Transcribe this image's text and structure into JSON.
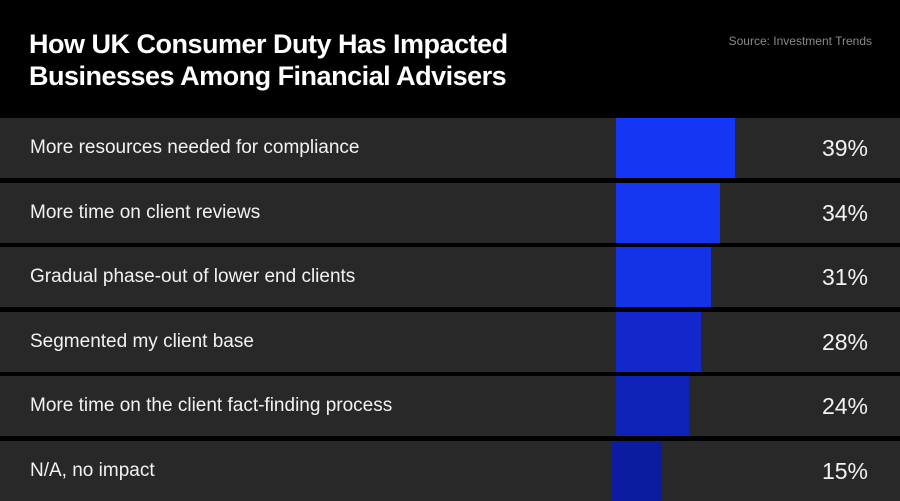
{
  "chart_data": {
    "type": "bar",
    "orientation": "horizontal",
    "title": "How UK Consumer Duty Has Impacted Businesses Among Financial Advisers",
    "source": "Source: Investment Trends",
    "categories": [
      "More resources needed for compliance",
      "More time on client reviews",
      "Gradual phase-out of lower end clients",
      "Segmented my client base",
      "More time on the client fact-finding process",
      "N/A, no impact"
    ],
    "values": [
      39,
      34,
      31,
      28,
      24,
      15
    ],
    "value_labels": [
      "39%",
      "34%",
      "31%",
      "28%",
      "24%",
      "15%"
    ],
    "bar_colors": [
      "#1537f5",
      "#1535f0",
      "#1433e6",
      "#1228cc",
      "#0f22b8",
      "#0b1ca0"
    ],
    "row_color": "#282828",
    "background": "#000000",
    "unit": "%",
    "grid": false
  }
}
